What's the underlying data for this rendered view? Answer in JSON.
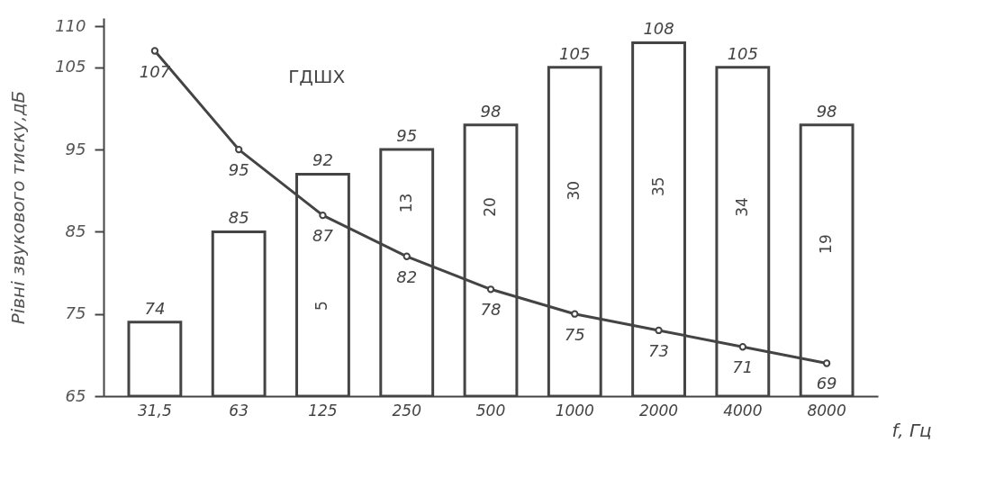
{
  "chart_data": {
    "type": "bar",
    "ylabel": "Рівні звукового тиску,дБ",
    "xlabel": "f, Гц",
    "categories": [
      "31,5",
      "63",
      "125",
      "250",
      "500",
      "1000",
      "2000",
      "4000",
      "8000"
    ],
    "series": [
      {
        "color": "#444444",
        "values": [
          74,
          85,
          92,
          95,
          98,
          105,
          108,
          105,
          98
        ]
      },
      {
        "type": "line",
        "name": "ГДШХ",
        "color": "#444444",
        "values": [
          107,
          95,
          87,
          82,
          78,
          75,
          73,
          71,
          69
        ]
      }
    ],
    "annotations": [
      "5",
      "13",
      "20",
      "30",
      "35",
      "34",
      "19"
    ],
    "ylim": [
      65,
      111
    ],
    "yticks": [
      65,
      75,
      85,
      95,
      105,
      110
    ],
    "grid": false,
    "legend": false,
    "marker": "circle",
    "line_style": "solid",
    "data_labels": true
  }
}
